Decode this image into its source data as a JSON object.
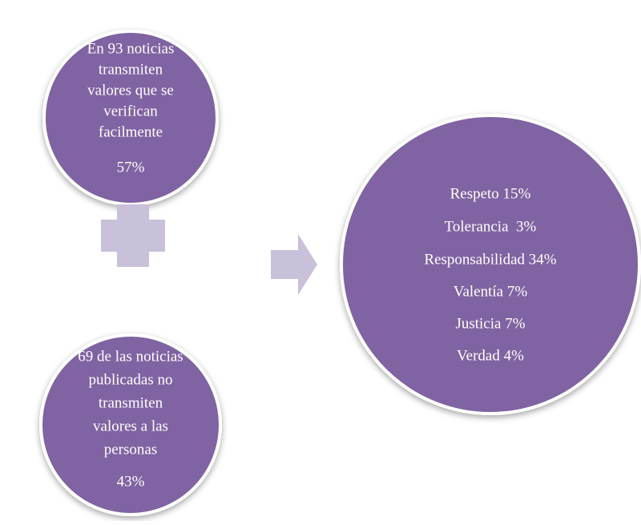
{
  "nodes": [
    {
      "lines": [
        "En 93 noticias",
        "transmiten",
        "valores que se",
        "verifican",
        "facilmente",
        "57%"
      ]
    },
    {
      "lines": [
        "69 de las noticias",
        "publicadas no",
        "transmiten",
        "valores a las",
        "personas",
        "43%"
      ]
    },
    {
      "lines": [
        "Respeto 15%",
        "Tolerancia  3%",
        "Responsabilidad 34%",
        "Valentía 7%",
        "Justicia 7%",
        "Verdad 4%"
      ]
    }
  ]
}
